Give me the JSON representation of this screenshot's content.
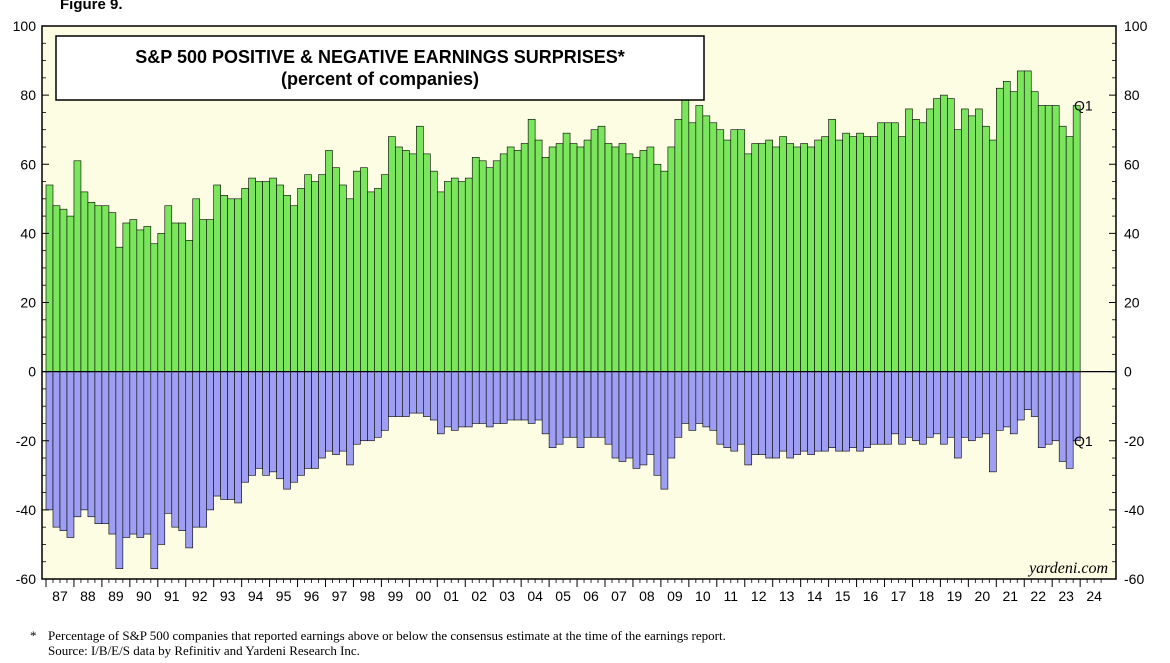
{
  "figure_label": "Figure 9.",
  "footnote": {
    "marker": "*",
    "text": "Percentage of S&P 500 companies that reported earnings above or below the consensus estimate at the time of the earnings report.",
    "source": "Source: I/B/E/S data by Refinitiv and Yardeni Research Inc."
  },
  "colors": {
    "background": "#fdfde3",
    "positive": "#7ce55e",
    "negative": "#9e9ef2",
    "outline": "#000000"
  },
  "chart_data": {
    "type": "bar",
    "title": "S&P 500 POSITIVE & NEGATIVE EARNINGS SURPRISES*",
    "subtitle": "(percent of companies)",
    "watermark": "yardeni.com",
    "ylim": [
      -60,
      100
    ],
    "yticks": [
      -60,
      -40,
      -20,
      0,
      20,
      40,
      60,
      80,
      100
    ],
    "x_start_year": 1987,
    "x_labels": [
      "87",
      "88",
      "89",
      "90",
      "91",
      "92",
      "93",
      "94",
      "95",
      "96",
      "97",
      "98",
      "99",
      "00",
      "01",
      "02",
      "03",
      "04",
      "05",
      "06",
      "07",
      "08",
      "09",
      "10",
      "11",
      "12",
      "13",
      "14",
      "15",
      "16",
      "17",
      "18",
      "19",
      "20",
      "21",
      "22",
      "23",
      "24"
    ],
    "latest_label": "Q1",
    "grid": false,
    "series": [
      {
        "values": [
          54,
          48,
          47,
          45,
          61,
          52,
          49,
          48,
          48,
          46,
          36,
          43,
          44,
          41,
          42,
          37,
          40,
          48,
          43,
          43,
          38,
          50,
          44,
          44,
          54,
          51,
          50,
          50,
          53,
          56,
          55,
          55,
          56,
          54,
          51,
          48,
          53,
          57,
          55,
          57,
          64,
          59,
          54,
          50,
          58,
          59,
          52,
          53,
          57,
          68,
          65,
          64,
          63,
          71,
          63,
          58,
          52,
          55,
          56,
          55,
          56,
          62,
          61,
          59,
          61,
          63,
          65,
          64,
          66,
          73,
          67,
          62,
          65,
          66,
          69,
          66,
          65,
          67,
          70,
          71,
          66,
          65,
          66,
          63,
          62,
          64,
          65,
          60,
          58,
          65,
          73,
          79,
          72,
          77,
          74,
          72,
          70,
          67,
          70,
          70,
          63,
          66,
          66,
          67,
          65,
          68,
          66,
          65,
          66,
          65,
          67,
          68,
          73,
          67,
          69,
          68,
          69,
          68,
          68,
          72,
          72,
          72,
          68,
          76,
          73,
          72,
          76,
          79,
          80,
          79,
          70,
          76,
          74,
          76,
          71,
          67,
          82,
          84,
          81,
          87,
          87,
          81,
          77,
          77,
          77,
          71,
          68,
          77
        ]
      },
      {
        "values": [
          -40,
          -45,
          -46,
          -48,
          -42,
          -40,
          -42,
          -44,
          -44,
          -47,
          -57,
          -48,
          -47,
          -48,
          -47,
          -57,
          -50,
          -41,
          -45,
          -46,
          -51,
          -45,
          -45,
          -40,
          -36,
          -37,
          -37,
          -38,
          -32,
          -30,
          -28,
          -30,
          -29,
          -31,
          -34,
          -32,
          -30,
          -28,
          -28,
          -25,
          -23,
          -24,
          -23,
          -27,
          -21,
          -20,
          -20,
          -19,
          -17,
          -13,
          -13,
          -13,
          -12,
          -12,
          -13,
          -14,
          -18,
          -16,
          -17,
          -16,
          -16,
          -15,
          -15,
          -16,
          -15,
          -15,
          -14,
          -14,
          -14,
          -15,
          -14,
          -18,
          -22,
          -21,
          -19,
          -19,
          -22,
          -19,
          -19,
          -19,
          -21,
          -25,
          -26,
          -25,
          -28,
          -27,
          -24,
          -30,
          -34,
          -25,
          -19,
          -15,
          -17,
          -15,
          -16,
          -17,
          -21,
          -22,
          -23,
          -21,
          -27,
          -24,
          -24,
          -25,
          -25,
          -23,
          -25,
          -24,
          -23,
          -24,
          -23,
          -23,
          -22,
          -23,
          -23,
          -22,
          -23,
          -22,
          -21,
          -21,
          -21,
          -18,
          -21,
          -19,
          -20,
          -21,
          -19,
          -18,
          -21,
          -19,
          -25,
          -19,
          -20,
          -19,
          -18,
          -29,
          -17,
          -16,
          -18,
          -14,
          -11,
          -13,
          -22,
          -21,
          -20,
          -26,
          -28,
          -20
        ]
      }
    ]
  }
}
